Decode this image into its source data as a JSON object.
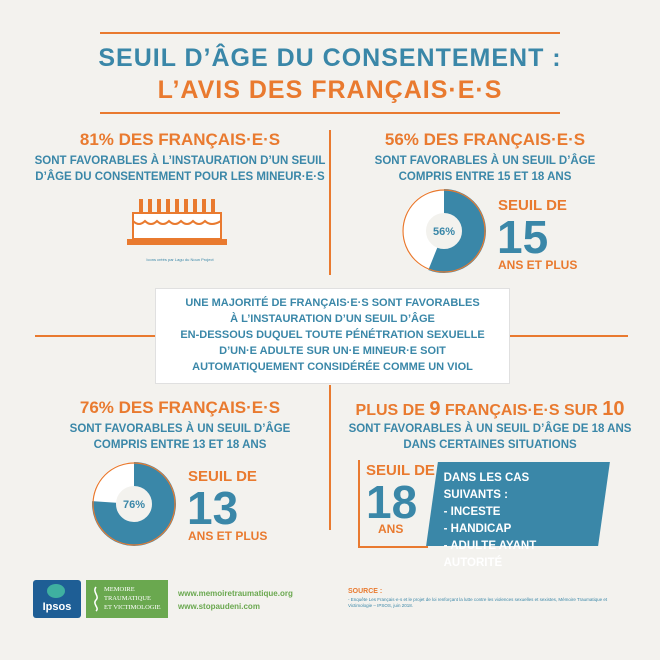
{
  "title": {
    "line1": "SEUIL D’ÂGE DU CONSENTEMENT :",
    "line2": "L’AVIS DES FRANÇAIS·E·S"
  },
  "q1": {
    "pct": "81%",
    "label": "DES FRANÇAIS·E·S",
    "sub1": "SONT FAVORABLES À L’INSTAURATION D’UN SEUIL",
    "sub2": "D’ÂGE DU CONSENTEMENT POUR LES MINEUR·E·S",
    "credit": "Icons créés par Lagu du Noun Project"
  },
  "q2": {
    "pct": "56%",
    "label": "DES FRANÇAIS·E·S",
    "sub1": "SONT FAVORABLES À UN SEUIL D’ÂGE",
    "sub2": "COMPRIS ENTRE 15 ET 18 ANS",
    "donut_label": "56%",
    "donut_value": 0.56,
    "seuil_de": "SEUIL DE",
    "age": "15",
    "ans": "ANS ET PLUS"
  },
  "center": {
    "l1": "UNE MAJORITÉ DE FRANÇAIS·E·S SONT FAVORABLES",
    "l2": "À L’INSTAURATION D’UN SEUIL D’ÂGE",
    "l3": "EN-DESSOUS DUQUEL TOUTE PÉNÉTRATION SEXUELLE",
    "l4": "D’UN·E ADULTE SUR UN·E MINEUR·E SOIT",
    "l5": "AUTOMATIQUEMENT CONSIDÉRÉE COMME UN VIOL"
  },
  "q3": {
    "pct": "76%",
    "label": "DES FRANÇAIS·E·S",
    "sub1": "SONT FAVORABLES À UN SEUIL D’ÂGE",
    "sub2": "COMPRIS ENTRE 13 ET 18 ANS",
    "donut_label": "76%",
    "donut_value": 0.76,
    "seuil_de": "SEUIL DE",
    "age": "13",
    "ans": "ANS ET PLUS"
  },
  "q4": {
    "pre": "PLUS DE",
    "n1": "9",
    "mid": "FRANÇAIS·E·S SUR",
    "n2": "10",
    "sub1": "SONT FAVORABLES À UN SEUIL D’ÂGE DE 18 ANS",
    "sub2": "DANS CERTAINES SITUATIONS",
    "seuil_de": "SEUIL DE",
    "age": "18",
    "ans": "ANS",
    "cases_title": "DANS LES CAS SUIVANTS :",
    "cases": [
      "- INCESTE",
      "- HANDICAP",
      "- ADULTE AYANT AUTORITÉ"
    ]
  },
  "footer": {
    "ipsos": "Ipsos",
    "mtv1": "MEMOIRE",
    "mtv2": "TRAUMATIQUE",
    "mtv3": "ET VICTIMOLOGIE",
    "link1": "www.memoiretraumatique.org",
    "link2": "www.stopaudeni.com",
    "source_title": "SOURCE :",
    "source_text": "- Enquête Les Français·e·s et le projet de loi renforçant la lutte contre les violences sexuelles et sexistes, Mémoire Traumatique et Victimologie – IPSOS, juin 2018."
  },
  "colors": {
    "orange": "#e97a2f",
    "blue": "#3a87a8",
    "background": "#f3f2ee"
  }
}
